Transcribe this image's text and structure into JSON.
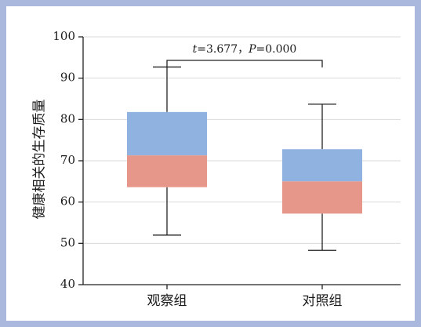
{
  "chart_data": {
    "type": "box",
    "title": "",
    "xlabel": "",
    "ylabel": "健康相关的生存质量",
    "ylim": [
      40,
      100
    ],
    "yticks": [
      40,
      50,
      60,
      70,
      80,
      90,
      100
    ],
    "grid": true,
    "categories": [
      "观察组",
      "对照组"
    ],
    "boxes": [
      {
        "category": "观察组",
        "min": 52,
        "q1": 63.6,
        "median": 71.3,
        "q3": 81.8,
        "max": 92.7
      },
      {
        "category": "对照组",
        "min": 48.3,
        "q1": 57.2,
        "median": 65.0,
        "q3": 72.8,
        "max": 83.7
      }
    ],
    "annotation": {
      "stat1_name": "t",
      "stat1_value": "=3.677，",
      "stat2_name": "P",
      "stat2_value": "=0.000"
    }
  },
  "colors": {
    "frame": "#a9b8dc",
    "plot_bg": "#ffffff",
    "upper_box": "#8fb2e0",
    "lower_box": "#e6978a",
    "grid": "#d9d9d9",
    "axis": "#222222"
  }
}
